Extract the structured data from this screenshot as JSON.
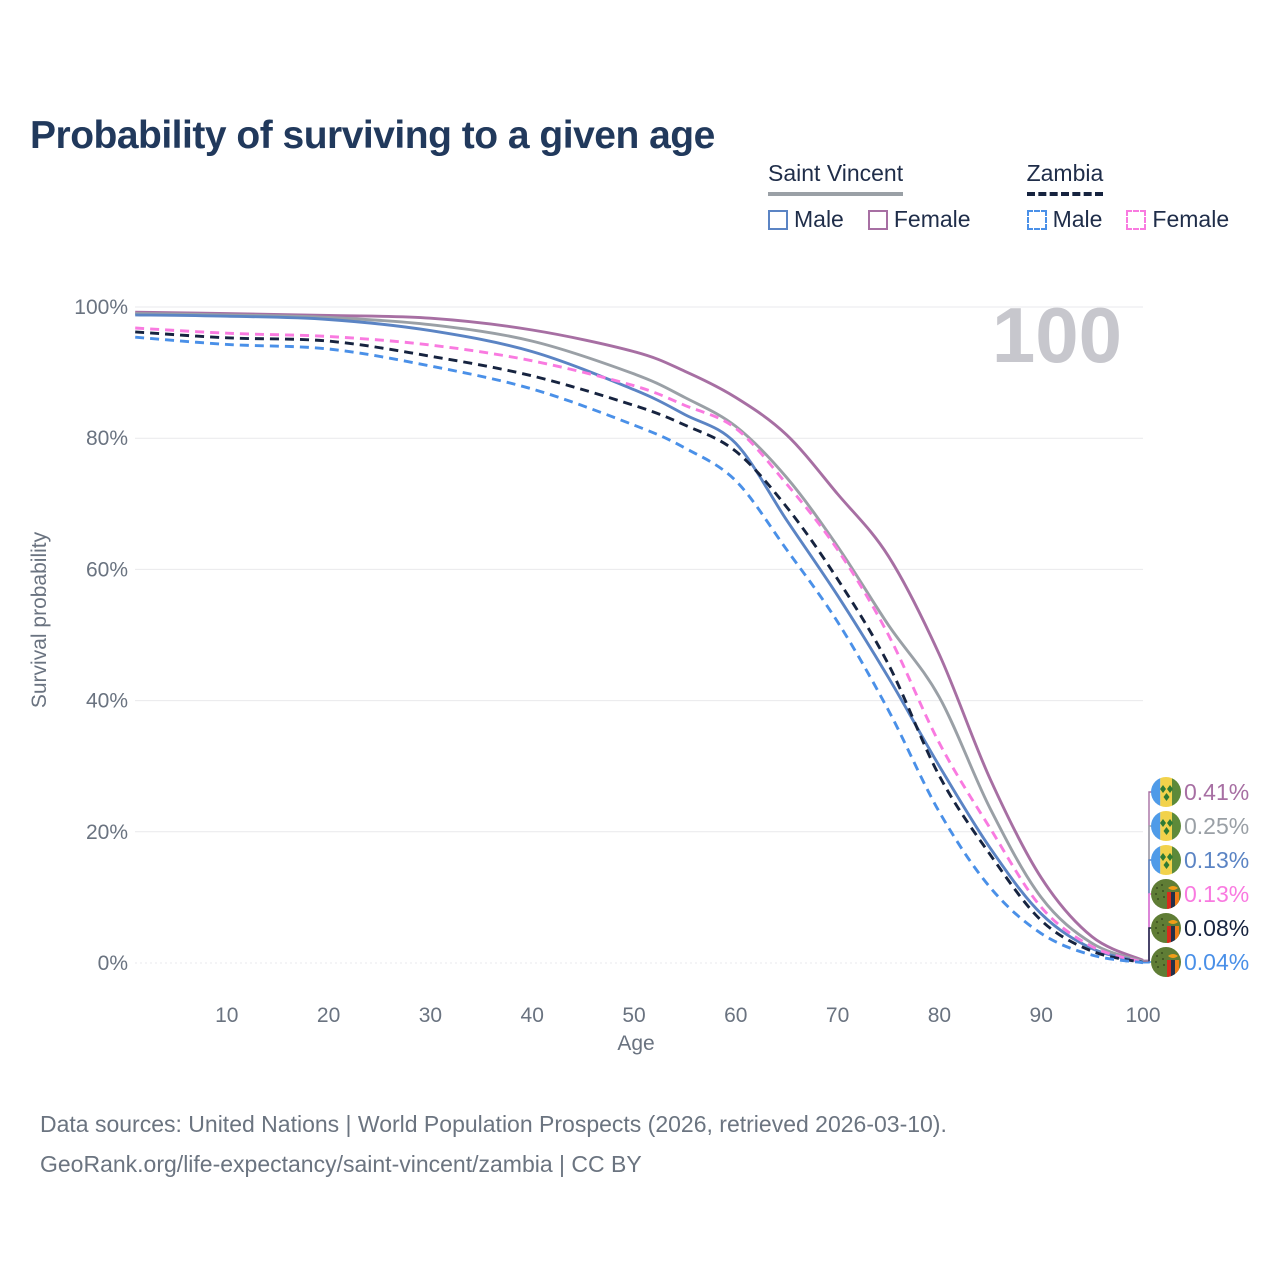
{
  "title": "Probability of surviving to a given age",
  "watermark": "100",
  "legend": {
    "groups": [
      {
        "title": "Saint Vincent",
        "line_style": "solid",
        "underline_color": "#9aa0a6",
        "items": [
          {
            "label": "Male",
            "color": "#5b84c4",
            "dash": false
          },
          {
            "label": "Female",
            "color": "#a76fa3",
            "dash": false
          }
        ]
      },
      {
        "title": "Zambia",
        "line_style": "dashed",
        "underline_color": "#16233f",
        "items": [
          {
            "label": "Male",
            "color": "#4a90e8",
            "dash": true
          },
          {
            "label": "Female",
            "color": "#f97ae0",
            "dash": true
          }
        ]
      }
    ]
  },
  "chart_data": {
    "type": "line",
    "title": "Probability of surviving to a given age",
    "xlabel": "Age",
    "ylabel": "Survival probability",
    "xlim": [
      1,
      100
    ],
    "ylim": [
      0,
      100
    ],
    "grid": true,
    "x_ticks": [
      10,
      20,
      30,
      40,
      50,
      60,
      70,
      80,
      90,
      100
    ],
    "y_ticks": [
      {
        "value": 100,
        "label": "100%"
      },
      {
        "value": 80,
        "label": "80%"
      },
      {
        "value": 60,
        "label": "60%"
      },
      {
        "value": 40,
        "label": "40%"
      },
      {
        "value": 20,
        "label": "20%"
      },
      {
        "value": 0,
        "label": "0%"
      }
    ],
    "ages": [
      1,
      10,
      20,
      30,
      40,
      50,
      55,
      60,
      65,
      70,
      75,
      80,
      85,
      90,
      95,
      100
    ],
    "series": [
      {
        "name": "Saint Vincent Female",
        "country": "Saint Vincent",
        "sex": "Female",
        "color": "#a76fa3",
        "dash": "solid",
        "end_label": "0.41%",
        "flag": "saint-vincent",
        "values": [
          99.2,
          99.0,
          98.7,
          98.3,
          96.5,
          93.2,
          90.2,
          86.2,
          80.5,
          71.5,
          62.0,
          47.0,
          28.0,
          13.0,
          4.0,
          0.41
        ]
      },
      {
        "name": "Saint Vincent Both sexes",
        "country": "Saint Vincent",
        "sex": "Both sexes",
        "color": "#9aa0a6",
        "dash": "solid",
        "end_label": "0.25%",
        "flag": "saint-vincent",
        "values": [
          99.0,
          98.8,
          98.4,
          97.3,
          94.8,
          89.8,
          86.2,
          81.8,
          74.0,
          63.5,
          51.5,
          40.5,
          23.5,
          10.0,
          3.0,
          0.25
        ]
      },
      {
        "name": "Saint Vincent Male",
        "country": "Saint Vincent",
        "sex": "Male",
        "color": "#5b84c4",
        "dash": "solid",
        "end_label": "0.13%",
        "flag": "saint-vincent",
        "values": [
          98.8,
          98.6,
          98.1,
          96.4,
          93.2,
          87.4,
          83.6,
          79.2,
          67.5,
          56.0,
          43.5,
          30.0,
          17.5,
          7.5,
          2.2,
          0.13
        ]
      },
      {
        "name": "Zambia Female",
        "country": "Zambia",
        "sex": "Female",
        "color": "#f97ae0",
        "dash": "dashed",
        "end_label": "0.13%",
        "flag": "zambia",
        "values": [
          96.8,
          96.0,
          95.5,
          94.2,
          91.8,
          88.0,
          85.0,
          81.5,
          73.0,
          63.0,
          50.0,
          33.5,
          20.5,
          8.5,
          2.5,
          0.13
        ]
      },
      {
        "name": "Zambia Both sexes",
        "country": "Zambia",
        "sex": "Both sexes",
        "color": "#16233f",
        "dash": "dashed",
        "end_label": "0.08%",
        "flag": "zambia",
        "values": [
          96.2,
          95.3,
          94.8,
          92.5,
          89.5,
          85.0,
          82.0,
          78.0,
          69.5,
          58.5,
          45.5,
          28.5,
          16.5,
          6.5,
          1.8,
          0.08
        ]
      },
      {
        "name": "Zambia Male",
        "country": "Zambia",
        "sex": "Male",
        "color": "#4a90e8",
        "dash": "dashed",
        "end_label": "0.04%",
        "flag": "zambia",
        "values": [
          95.4,
          94.3,
          93.6,
          91.0,
          87.5,
          82.0,
          78.5,
          73.5,
          63.0,
          52.0,
          38.5,
          23.0,
          11.5,
          4.5,
          1.2,
          0.04
        ]
      }
    ]
  },
  "footer": {
    "line1": "Data sources: United Nations | World Population Prospects (2026, retrieved 2026-03-10).",
    "line2": "GeoRank.org/life-expectancy/saint-vincent/zambia | CC BY"
  }
}
